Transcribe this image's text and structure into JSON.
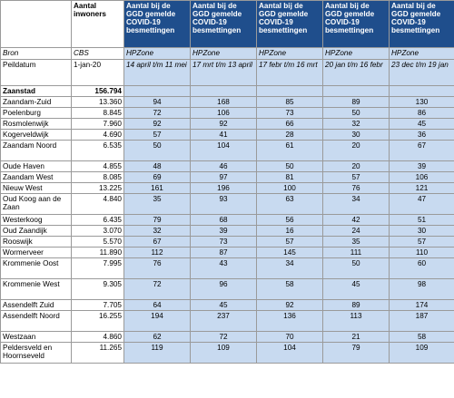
{
  "header": {
    "col0": "",
    "col1": "Aantal inwoners",
    "period_header": "Aantal bij de GGD gemelde COVID-19 besmettingen"
  },
  "bron": {
    "label": "Bron",
    "cbs": "CBS",
    "hpzone": "HPZone"
  },
  "peildatum": {
    "label": "Peildatum",
    "inwoners_date": "1-jan-20",
    "periods": [
      "14 april t/m 11 mei",
      "17 mrt t/m 13 april",
      "17 febr t/m 16 mrt",
      "20 jan t/m 16 febr",
      "23 dec t/m 19 jan"
    ]
  },
  "city": {
    "name": "Zaanstad",
    "inwoners": "156.794"
  },
  "rows": [
    {
      "wijk": "Zaandam-Zuid",
      "inwoners": "13.360",
      "v": [
        "94",
        "168",
        "85",
        "89",
        "130"
      ]
    },
    {
      "wijk": "Poelenburg",
      "inwoners": "8.845",
      "v": [
        "72",
        "106",
        "73",
        "50",
        "86"
      ]
    },
    {
      "wijk": "Rosmolenwijk",
      "inwoners": "7.960",
      "v": [
        "92",
        "92",
        "66",
        "32",
        "45"
      ]
    },
    {
      "wijk": "Kogerveldwijk",
      "inwoners": "4.690",
      "v": [
        "57",
        "41",
        "28",
        "30",
        "36"
      ]
    },
    {
      "wijk": "Zaandam Noord",
      "inwoners": "6.535",
      "v": [
        "50",
        "104",
        "61",
        "20",
        "67"
      ]
    },
    {
      "wijk": "Oude Haven",
      "inwoners": "4.855",
      "v": [
        "48",
        "46",
        "50",
        "20",
        "39"
      ]
    },
    {
      "wijk": "Zaandam West",
      "inwoners": "8.085",
      "v": [
        "69",
        "97",
        "81",
        "57",
        "106"
      ]
    },
    {
      "wijk": "Nieuw West",
      "inwoners": "13.225",
      "v": [
        "161",
        "196",
        "100",
        "76",
        "121"
      ]
    },
    {
      "wijk": "Oud Koog aan de Zaan",
      "inwoners": "4.840",
      "v": [
        "35",
        "93",
        "63",
        "34",
        "47"
      ]
    },
    {
      "wijk": "Westerkoog",
      "inwoners": "6.435",
      "v": [
        "79",
        "68",
        "56",
        "42",
        "51"
      ]
    },
    {
      "wijk": "Oud Zaandijk",
      "inwoners": "3.070",
      "v": [
        "32",
        "39",
        "16",
        "24",
        "30"
      ]
    },
    {
      "wijk": "Rooswijk",
      "inwoners": "5.570",
      "v": [
        "67",
        "73",
        "57",
        "35",
        "57"
      ]
    },
    {
      "wijk": "Wormerveer",
      "inwoners": "11.890",
      "v": [
        "112",
        "87",
        "145",
        "111",
        "110"
      ]
    },
    {
      "wijk": "Krommenie Oost",
      "inwoners": "7.995",
      "v": [
        "76",
        "43",
        "34",
        "50",
        "60"
      ]
    },
    {
      "wijk": "Krommenie West",
      "inwoners": "9.305",
      "v": [
        "72",
        "96",
        "58",
        "45",
        "98"
      ]
    },
    {
      "wijk": "Assendelft Zuid",
      "inwoners": "7.705",
      "v": [
        "64",
        "45",
        "92",
        "89",
        "174"
      ]
    },
    {
      "wijk": "Assendelft Noord",
      "inwoners": "16.255",
      "v": [
        "194",
        "237",
        "136",
        "113",
        "187"
      ]
    },
    {
      "wijk": "Westzaan",
      "inwoners": "4.860",
      "v": [
        "62",
        "72",
        "70",
        "21",
        "58"
      ]
    },
    {
      "wijk": "Peldersveld en Hoornseveld",
      "inwoners": "11.265",
      "v": [
        "119",
        "109",
        "104",
        "79",
        "109"
      ]
    }
  ],
  "colors": {
    "header_blue": "#1f4e8c",
    "cell_blue": "#c8daf0"
  }
}
